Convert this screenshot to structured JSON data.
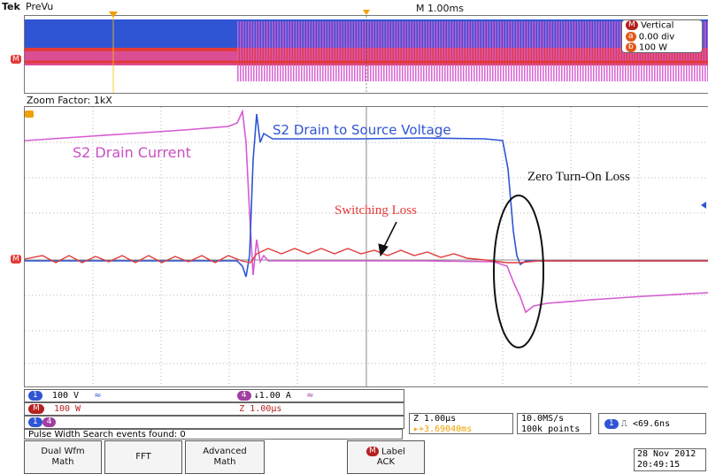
{
  "header": {
    "brand": "Tek",
    "mode": "PreVu",
    "timebase": "M 1.00ms"
  },
  "overview": {
    "vertical_label": "Vertical",
    "vertical_pos": "0.00 div",
    "vertical_scale": "100 W"
  },
  "zoom": {
    "label": "Zoom Factor: 1kX"
  },
  "annotations": {
    "s2_current": "S2 Drain Current",
    "s2_voltage": "S2 Drain to Source Voltage",
    "switching_loss": "Switching Loss",
    "zero_turn_on": "Zero Turn-On Loss"
  },
  "channels": {
    "ch_blue_scale": "100 V",
    "ch_blue_bw": "≈",
    "ch_pink_scale": "↓1.00 A",
    "ch_pink_bw": "≈",
    "ch_red_scale": "100 W",
    "zoom_time": "Z 1.00µs"
  },
  "status": {
    "search_text": "Pulse Width Search events found: 0"
  },
  "readouts": {
    "zoom_scale": "Z 1.00µs",
    "trigger_pos": "▸+3.69040ms",
    "sample_rate": "10.0MS/s",
    "record_length": "100k points",
    "trigger_cond": "⎍ <69.6ns",
    "date": "28 Nov 2012",
    "time": "20:49:15"
  },
  "menu": {
    "dual_wfm_1": "Dual Wfm",
    "dual_wfm_2": "Math",
    "fft": "FFT",
    "adv_1": "Advanced",
    "adv_2": "Math",
    "label_1": "Label",
    "label_2": "ACK"
  },
  "colors": {
    "blue_trace": "#2f55d4",
    "pink_trace": "#d65bd0",
    "red_trace": "#e23a3a",
    "grid": "#9a9a9a",
    "bg": "#ffffff"
  }
}
